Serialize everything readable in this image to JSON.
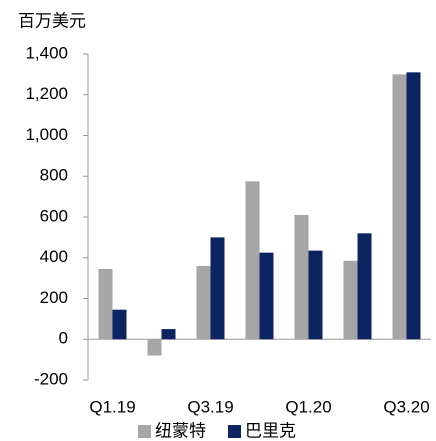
{
  "chart_data": {
    "type": "bar",
    "y_label": "百万美元",
    "categories": [
      "Q1.19",
      null,
      "Q3.19",
      null,
      "Q1.20",
      null,
      "Q3.20"
    ],
    "series": [
      {
        "name": "纽蒙特",
        "color": "#a6a6a6",
        "values": [
          345,
          -80,
          360,
          775,
          610,
          385,
          1300
        ]
      },
      {
        "name": "巴里克",
        "color": "#0c2461",
        "values": [
          145,
          50,
          500,
          425,
          435,
          520,
          1310
        ]
      }
    ],
    "ylim": [
      -200,
      1400
    ],
    "yticks": [
      -200,
      0,
      200,
      400,
      600,
      800,
      {
        "value": 1000,
        "label": "1,000"
      },
      {
        "value": 1200,
        "label": "1,200"
      },
      {
        "value": 1400,
        "label": "1,400"
      }
    ],
    "legend": "bottom"
  }
}
